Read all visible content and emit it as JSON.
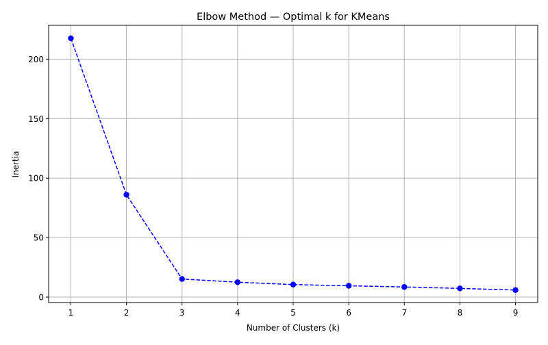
{
  "chart_data": {
    "type": "line",
    "title": "Elbow Method — Optimal k for KMeans",
    "xlabel": "Number of Clusters (k)",
    "ylabel": "Inertia",
    "x": [
      1,
      2,
      3,
      4,
      5,
      6,
      7,
      8,
      9
    ],
    "series": [
      {
        "values": [
          217.5,
          86.0,
          15.2,
          12.5,
          10.5,
          9.5,
          8.5,
          7.3,
          5.9
        ],
        "color": "#0000ff",
        "line_style": "dashed",
        "marker": "circle"
      }
    ],
    "xlim": [
      0.6,
      9.4
    ],
    "ylim": [
      -4.6,
      228.4
    ],
    "xticks": [
      "1",
      "2",
      "3",
      "4",
      "5",
      "6",
      "7",
      "8",
      "9"
    ],
    "yticks": [
      "0",
      "50",
      "100",
      "150",
      "200"
    ],
    "grid": true,
    "legend": false
  }
}
